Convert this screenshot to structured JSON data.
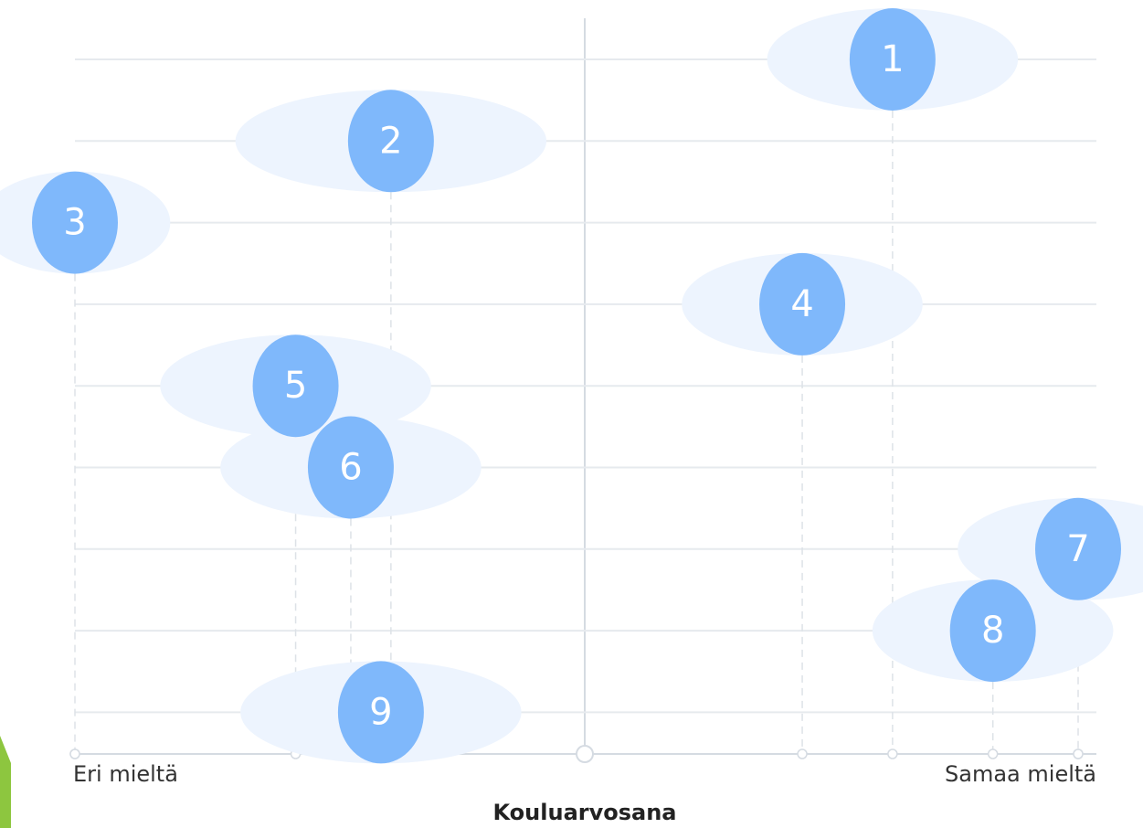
{
  "chart_data": {
    "type": "dot",
    "x_label": "Kouluarvosana",
    "categories": [
      "1",
      "2",
      "3",
      "4",
      "5",
      "6",
      "7",
      "8",
      "9"
    ],
    "values": [
      0.63,
      -0.37,
      -1.0,
      0.45,
      -0.56,
      -0.45,
      1.0,
      0.83,
      -0.39
    ],
    "spread": [
      0.25,
      0.31,
      0.19,
      0.24,
      0.27,
      0.26,
      0.24,
      0.24,
      0.28
    ],
    "color": "#7fb8fb",
    "spread_color": "#edf4fe",
    "xlim": [
      -1,
      1
    ],
    "xticks": [
      {
        "value": -1,
        "label": "Eri mieltä"
      },
      {
        "value": 1,
        "label": "Samaa mieltä"
      }
    ],
    "grid": true
  }
}
